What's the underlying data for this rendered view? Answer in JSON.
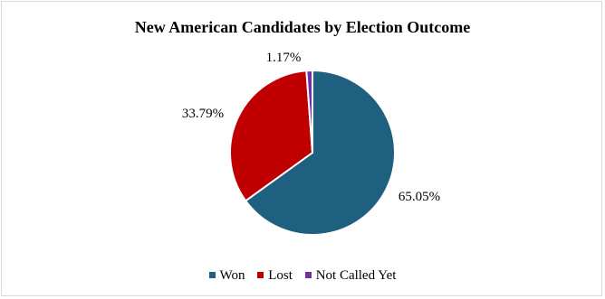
{
  "chart_data": {
    "type": "pie",
    "title": "New American Candidates by Election Outcome",
    "categories": [
      "Won",
      "Lost",
      "Not Called Yet"
    ],
    "values": [
      65.05,
      33.79,
      1.17
    ],
    "data_labels": [
      "65.05%",
      "33.79%",
      "1.17%"
    ],
    "colors": [
      "#1F5F7F",
      "#C00000",
      "#7030A0"
    ],
    "legend": "bottom"
  }
}
